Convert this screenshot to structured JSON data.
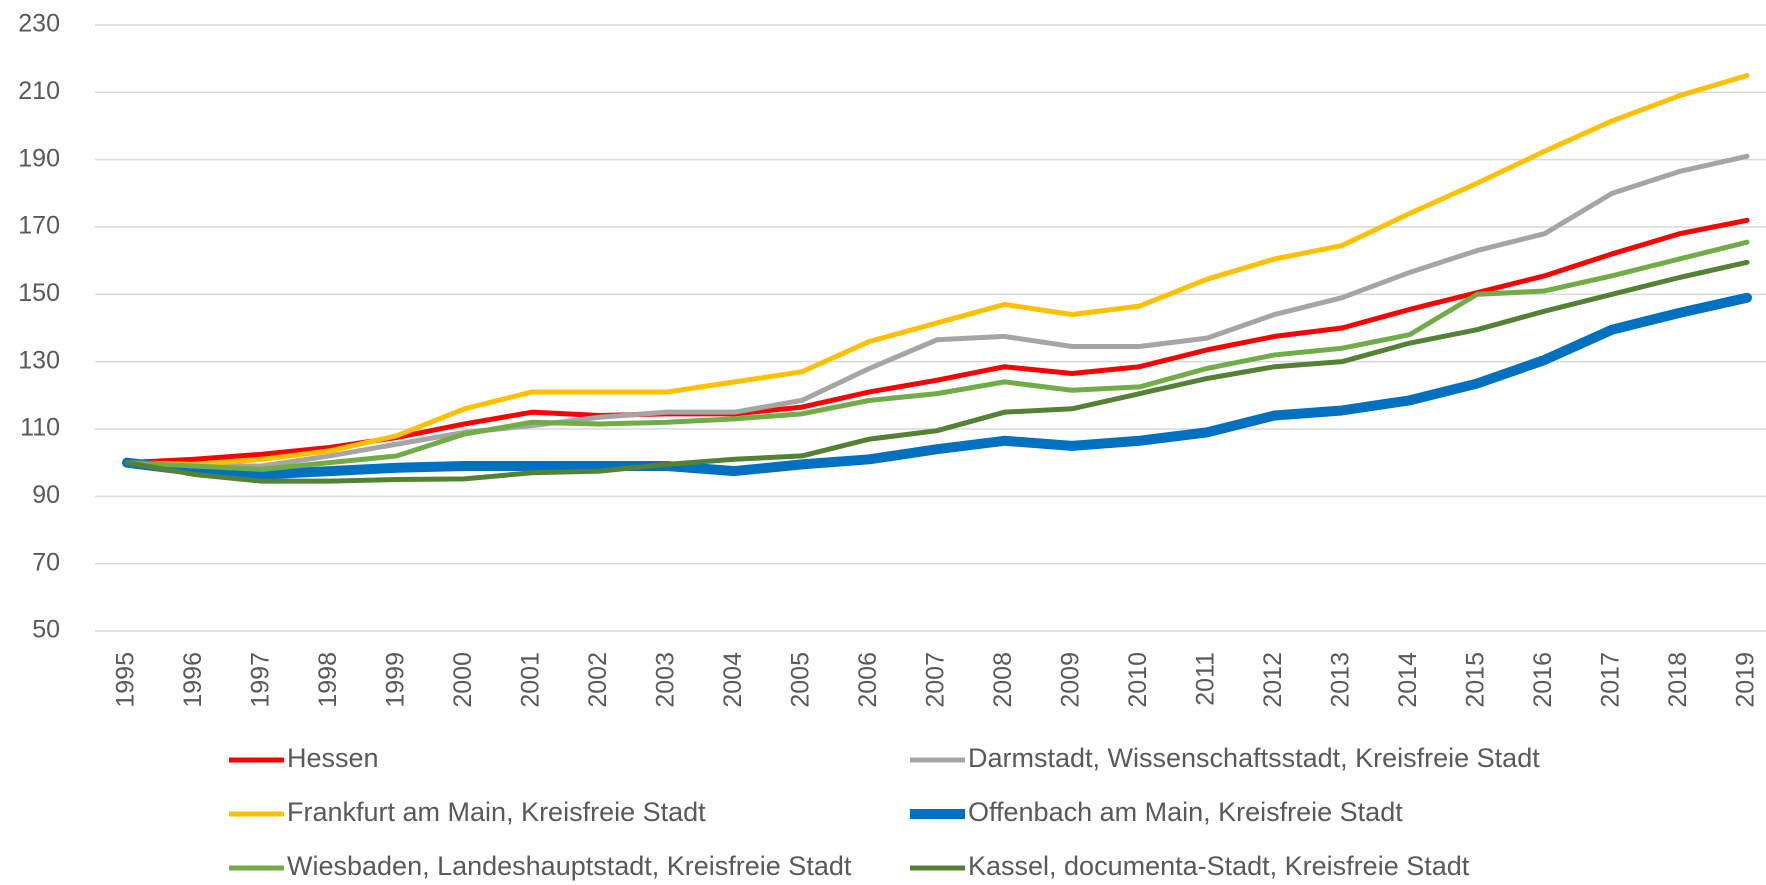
{
  "chart_data": {
    "type": "line",
    "categories": [
      "1995",
      "1996",
      "1997",
      "1998",
      "1999",
      "2000",
      "2001",
      "2002",
      "2003",
      "2004",
      "2005",
      "2006",
      "2007",
      "2008",
      "2009",
      "2010",
      "2011",
      "2012",
      "2013",
      "2014",
      "2015",
      "2016",
      "2017",
      "2018",
      "2019"
    ],
    "series": [
      {
        "name": "Hessen",
        "color": "#ff0000",
        "values": [
          100,
          101,
          102.5,
          104.5,
          107.5,
          111.5,
          115,
          114,
          114.5,
          114.5,
          116.5,
          121,
          124.5,
          128.5,
          126.5,
          128.5,
          133.5,
          137.5,
          140,
          145.5,
          150.5,
          155.5,
          162,
          168,
          172
        ]
      },
      {
        "name": "Darmstadt, Wissenschaftsstadt, Kreisfreie Stadt",
        "color": "#a5a5a5",
        "values": [
          100,
          99,
          99,
          102,
          105.5,
          109,
          111,
          113.5,
          115,
          115,
          118.5,
          128,
          136.5,
          137.5,
          134.5,
          134.5,
          137,
          144,
          149,
          156.5,
          163,
          168,
          180,
          186.5,
          191
        ]
      },
      {
        "name": "Frankfurt am Main, Kreisfreie Stadt",
        "color": "#ffc000",
        "values": [
          100,
          99.5,
          101,
          103.5,
          108,
          116,
          121,
          121,
          121,
          124,
          127,
          136,
          141.5,
          147,
          144,
          146.5,
          154.5,
          160.5,
          164.5,
          174,
          183,
          192.5,
          201.5,
          209,
          215
        ]
      },
      {
        "name": "Offenbach am Main, Kreisfreie Stadt",
        "color": "#0070c0",
        "values": [
          100,
          97.5,
          96.5,
          97.5,
          98.5,
          99,
          99,
          99,
          99,
          97.5,
          99.5,
          101,
          104,
          106.5,
          105,
          106.5,
          109,
          114,
          115.5,
          118.5,
          123.5,
          130.5,
          139.5,
          144.5,
          149
        ]
      },
      {
        "name": "Wiesbaden, Landeshauptstadt, Kreisfreie Stadt",
        "color": "#70ad47",
        "values": [
          100,
          99,
          98,
          100,
          102,
          108.5,
          112,
          111.5,
          112,
          113,
          114.5,
          118.5,
          120.5,
          124,
          121.5,
          122.5,
          128,
          132,
          134,
          138,
          150,
          151,
          155.5,
          160.5,
          165.5
        ]
      },
      {
        "name": "Kassel, documenta-Stadt, Kreisfreie Stadt",
        "color": "#548235",
        "values": [
          100,
          96.5,
          94.5,
          94.5,
          95,
          95.2,
          97,
          97.5,
          99.5,
          101,
          102,
          107,
          109.5,
          115,
          116,
          120.5,
          125,
          128.5,
          130,
          135.5,
          139.5,
          145,
          150,
          155,
          159.5
        ]
      }
    ],
    "ylim": [
      50,
      230
    ],
    "yticks": [
      50,
      70,
      90,
      110,
      130,
      150,
      170,
      190,
      210,
      230
    ],
    "grid": true,
    "legend": "bottom"
  }
}
